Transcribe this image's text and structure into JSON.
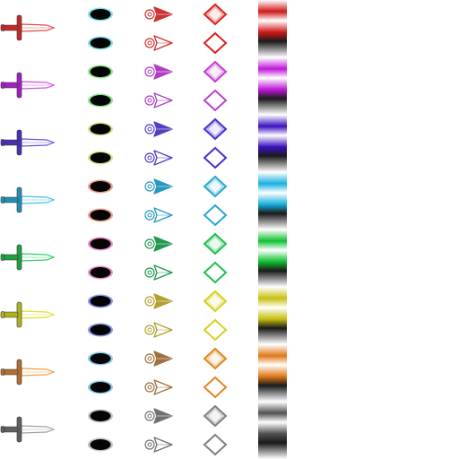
{
  "sprite_sheet": {
    "variants": [
      {
        "name": "red",
        "blade": "#e24a4a",
        "handle": "#c22a2a",
        "arrow": "#cc3333",
        "gem": "#dd2222",
        "orb_rim": "#1ec8d8",
        "stripe": "#d01818"
      },
      {
        "name": "magenta",
        "blade": "#d050e0",
        "handle": "#a020c0",
        "arrow": "#b040c0",
        "gem": "#c040d0",
        "orb_rim": "#30d030",
        "stripe": "#c018d8"
      },
      {
        "name": "violet",
        "blade": "#6a50e0",
        "handle": "#4a30b0",
        "arrow": "#5040c0",
        "gem": "#4a30d0",
        "orb_rim": "#b0d020",
        "stripe": "#3a10c0"
      },
      {
        "name": "cyan",
        "blade": "#40c0e0",
        "handle": "#2090b0",
        "arrow": "#2898c0",
        "gem": "#2aa8d0",
        "orb_rim": "#e05030",
        "stripe": "#18b0e0"
      },
      {
        "name": "green",
        "blade": "#30d060",
        "handle": "#20a040",
        "arrow": "#209850",
        "gem": "#20c050",
        "orb_rim": "#e030a0",
        "stripe": "#10c030"
      },
      {
        "name": "yellow",
        "blade": "#e0e030",
        "handle": "#b0b020",
        "arrow": "#b0a030",
        "gem": "#d8d020",
        "orb_rim": "#3040e0",
        "stripe": "#c8c010"
      },
      {
        "name": "orange",
        "blade": "#f0a040",
        "handle": "#b07030",
        "arrow": "#a07040",
        "gem": "#e08820",
        "orb_rim": "#30a0e0",
        "stripe": "#e07818"
      },
      {
        "name": "gray",
        "blade": "#a0a0a0",
        "handle": "#606060",
        "arrow": "#707070",
        "gem": "#808080",
        "orb_rim": "#909090",
        "stripe": "#505050"
      }
    ]
  }
}
